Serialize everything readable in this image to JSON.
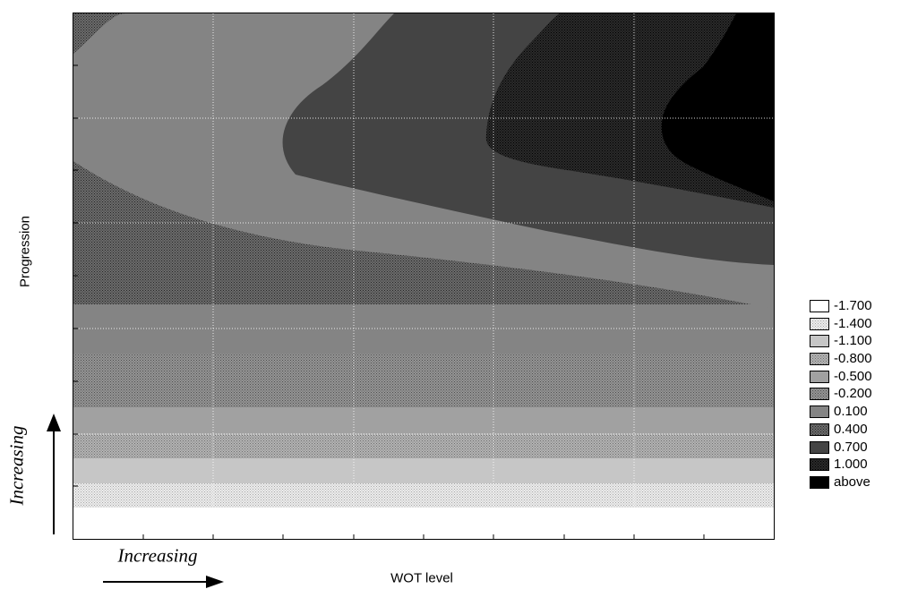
{
  "chart_data": {
    "type": "contour",
    "title": "",
    "xlabel": "WOT level",
    "ylabel": "Progression",
    "legend": {
      "placement": "right",
      "entries": [
        {
          "label": "-1.700",
          "level": -1.7,
          "color": "#ffffff",
          "pattern": "none"
        },
        {
          "label": "-1.400",
          "level": -1.4,
          "color": "#ededed",
          "pattern": "dots"
        },
        {
          "label": "-1.100",
          "level": -1.1,
          "color": "#c6c6c6",
          "pattern": "solid"
        },
        {
          "label": "-0.800",
          "level": -0.8,
          "color": "#b4b4b4",
          "pattern": "dots"
        },
        {
          "label": "-0.500",
          "level": -0.5,
          "color": "#a1a1a1",
          "pattern": "solid"
        },
        {
          "label": "-0.200",
          "level": -0.2,
          "color": "#959595",
          "pattern": "dots"
        },
        {
          "label": "0.100",
          "level": 0.1,
          "color": "#848484",
          "pattern": "solid"
        },
        {
          "label": "0.400",
          "level": 0.4,
          "color": "#6c6c6c",
          "pattern": "dots"
        },
        {
          "label": "0.700",
          "level": 0.7,
          "color": "#444444",
          "pattern": "solid"
        },
        {
          "label": "1.000",
          "level": 1.0,
          "color": "#2a2a2a",
          "pattern": "dots"
        },
        {
          "label": "above",
          "level": null,
          "color": "#000000",
          "pattern": "solid"
        }
      ]
    },
    "grid": true,
    "x_tick_labels": [],
    "y_tick_labels": []
  },
  "annotations": {
    "y_direction": "Increasing",
    "x_direction": "Increasing"
  }
}
